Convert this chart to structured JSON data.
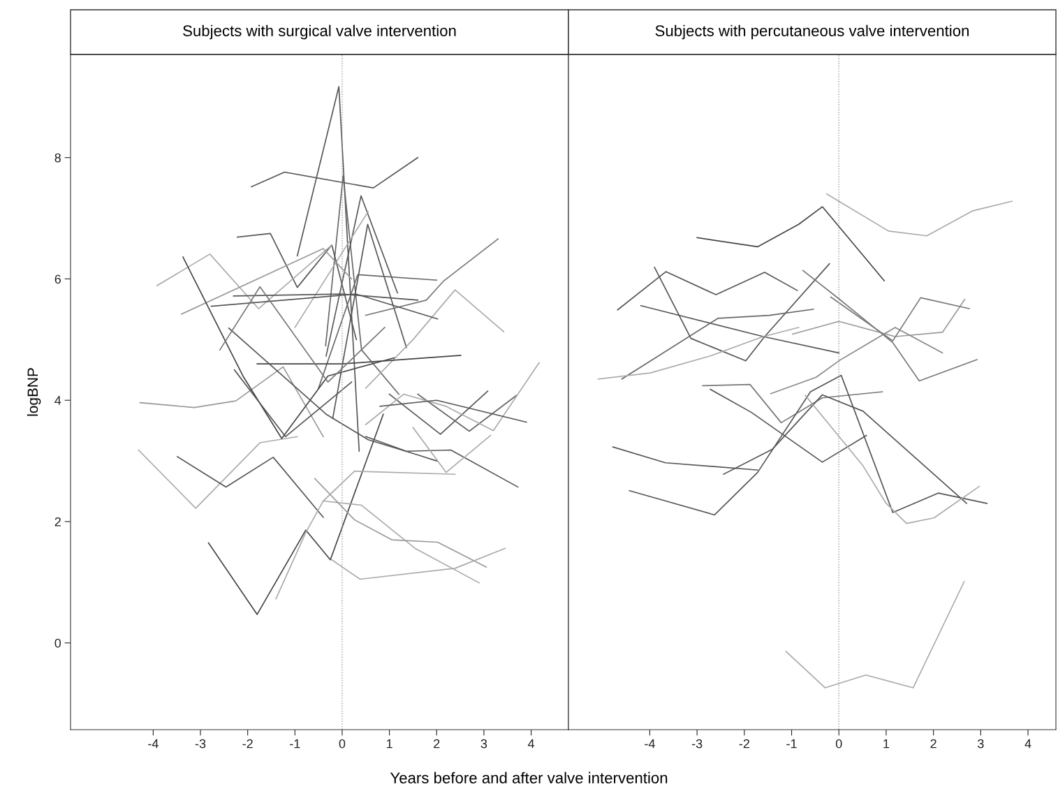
{
  "chart_data": [
    {
      "type": "line",
      "title": "Subjects with surgical valve intervention",
      "xlabel": "Years before and after valve intervention",
      "ylabel": "logBNP",
      "xlim": [
        -5.75,
        4.79
      ],
      "ylim": [
        -1.43,
        9.7
      ],
      "xticks": [
        -4,
        -3,
        -2,
        -1,
        0,
        1,
        2,
        3,
        4
      ],
      "yticks": [
        0,
        2,
        4,
        6,
        8
      ],
      "grid": false,
      "legend": false,
      "marker": "none",
      "line_style": "solid",
      "ref_lines": [
        {
          "axis": "x",
          "value": 0,
          "label": null,
          "color": "#999999",
          "line_style": "dotted"
        }
      ],
      "series": [
        {
          "color": "#555555",
          "x": [
            -1.92,
            -1.22,
            0.66,
            1.6
          ],
          "values": [
            7.52,
            7.76,
            7.5,
            8.0
          ]
        },
        {
          "color": "#555555",
          "x": [
            -0.95,
            -0.07,
            0.36
          ],
          "values": [
            6.38,
            9.17,
            3.16
          ]
        },
        {
          "color": "#666666",
          "x": [
            -0.35,
            0.02,
            0.41,
            1.2
          ],
          "values": [
            4.9,
            7.7,
            4.83,
            4.1
          ]
        },
        {
          "color": "#555555",
          "x": [
            -0.34,
            0.4,
            1.17
          ],
          "values": [
            4.73,
            7.37,
            5.77
          ]
        },
        {
          "color": "#555555",
          "x": [
            -0.2,
            0.54,
            1.36
          ],
          "values": [
            3.7,
            6.9,
            4.87
          ]
        },
        {
          "color": "#aaaaaa",
          "x": [
            -1.0,
            0.55
          ],
          "values": [
            5.2,
            7.11
          ]
        },
        {
          "color": "#555555",
          "x": [
            -2.22,
            -1.52,
            -0.95,
            -0.22,
            0.3
          ],
          "values": [
            6.69,
            6.75,
            5.86,
            6.56,
            5.0
          ]
        },
        {
          "color": "#aaaaaa",
          "x": [
            -3.92,
            -2.8,
            -1.77,
            -0.22
          ],
          "values": [
            5.89,
            6.41,
            5.51,
            6.56
          ]
        },
        {
          "color": "#999999",
          "x": [
            -3.4,
            -0.4,
            0.2
          ],
          "values": [
            5.42,
            6.5,
            6.0
          ]
        },
        {
          "color": "#777777",
          "x": [
            0.5,
            1.78,
            2.14,
            3.3
          ],
          "values": [
            5.4,
            5.65,
            5.96,
            6.66
          ]
        },
        {
          "color": "#aaaaaa",
          "x": [
            0.5,
            1.5,
            2.39,
            3.42
          ],
          "values": [
            4.2,
            5.0,
            5.82,
            5.13
          ]
        },
        {
          "color": "#666666",
          "x": [
            -0.5,
            0.33,
            2.0
          ],
          "values": [
            4.2,
            6.07,
            5.98
          ]
        },
        {
          "color": "#555555",
          "x": [
            -2.3,
            0,
            1.6
          ],
          "values": [
            5.72,
            5.75,
            5.65
          ]
        },
        {
          "color": "#555555",
          "x": [
            -2.77,
            0.3,
            2.02
          ],
          "values": [
            5.55,
            5.75,
            5.34
          ]
        },
        {
          "color": "#999999",
          "x": [
            -4.28,
            -3.13,
            -2.25,
            -1.25,
            -0.4
          ],
          "values": [
            3.96,
            3.88,
            3.99,
            4.55,
            3.4
          ]
        },
        {
          "color": "#aaaaaa",
          "x": [
            -4.31,
            -3.1,
            -1.74,
            -0.95
          ],
          "values": [
            3.18,
            2.22,
            3.3,
            3.4
          ]
        },
        {
          "color": "#555555",
          "x": [
            -3.49,
            -2.46,
            -1.46,
            -0.4
          ],
          "values": [
            3.07,
            2.57,
            3.06,
            2.07
          ]
        },
        {
          "color": "#444444",
          "x": [
            -2.83,
            -1.8,
            -0.77,
            -0.25,
            0.87
          ],
          "values": [
            1.65,
            0.47,
            1.86,
            1.37,
            3.77
          ]
        },
        {
          "color": "#aaaaaa",
          "x": [
            -1.4,
            -0.77,
            -0.4,
            0.41,
            1.54,
            2.9
          ],
          "values": [
            0.73,
            1.82,
            2.34,
            2.27,
            1.56,
            0.99
          ]
        },
        {
          "color": "#999999",
          "x": [
            -0.58,
            0.26,
            1.05,
            2.02,
            3.05
          ],
          "values": [
            2.71,
            2.03,
            1.7,
            1.66,
            1.25
          ]
        },
        {
          "color": "#aaaaaa",
          "x": [
            -0.22,
            0.38,
            2.39,
            3.45
          ],
          "values": [
            1.37,
            1.05,
            1.23,
            1.56
          ]
        },
        {
          "color": "#aaaaaa",
          "x": [
            -0.4,
            0.26,
            2.39
          ],
          "values": [
            2.34,
            2.83,
            2.78
          ]
        },
        {
          "color": "#555555",
          "x": [
            0.5,
            1.36,
            2.3,
            3.72
          ],
          "values": [
            3.4,
            3.16,
            3.18,
            2.57
          ]
        },
        {
          "color": "#aaaaaa",
          "x": [
            1.5,
            2.2,
            3.14
          ],
          "values": [
            3.55,
            2.81,
            3.42
          ]
        },
        {
          "color": "#555555",
          "x": [
            1.0,
            2.08,
            3.08
          ],
          "values": [
            4.1,
            3.44,
            4.15
          ]
        },
        {
          "color": "#666666",
          "x": [
            1.6,
            2.69,
            3.69
          ],
          "values": [
            4.1,
            3.49,
            4.08
          ]
        },
        {
          "color": "#aaaaaa",
          "x": [
            0.5,
            1.3,
            2.2,
            3.2,
            4.17
          ],
          "values": [
            3.6,
            4.1,
            3.9,
            3.5,
            4.62
          ]
        },
        {
          "color": "#555555",
          "x": [
            0.8,
            2.0,
            3.9
          ],
          "values": [
            3.9,
            4.0,
            3.64
          ]
        },
        {
          "color": "#444444",
          "x": [
            -1.8,
            0,
            2.51
          ],
          "values": [
            4.6,
            4.6,
            4.74
          ]
        },
        {
          "color": "#444444",
          "x": [
            -3.37,
            -2.1,
            -1.28,
            -0.3,
            1.1
          ],
          "values": [
            6.36,
            4.4,
            3.37,
            4.4,
            4.7
          ]
        },
        {
          "color": "#555555",
          "x": [
            -2.4,
            -0.34,
            0.55,
            1.6,
            2.0
          ],
          "values": [
            5.19,
            3.77,
            3.35,
            3.1,
            3.0
          ]
        },
        {
          "color": "#777777",
          "x": [
            -2.59,
            -1.74,
            -0.3,
            0.9
          ],
          "values": [
            4.83,
            5.87,
            4.3,
            5.2
          ]
        },
        {
          "color": "#555555",
          "x": [
            -2.28,
            -1.2,
            0.2
          ],
          "values": [
            4.5,
            3.4,
            4.3
          ]
        }
      ]
    },
    {
      "type": "line",
      "title": "Subjects with percutaneous valve intervention",
      "xlim": [
        -5.72,
        4.59
      ],
      "ylim": [
        -1.43,
        9.7
      ],
      "xticks": [
        -4,
        -3,
        -2,
        -1,
        0,
        1,
        2,
        3,
        4
      ],
      "tick_labels": "x",
      "grid": false,
      "legend": false,
      "marker": "none",
      "line_style": "solid",
      "ref_lines": [
        {
          "axis": "x",
          "value": 0,
          "label": null,
          "color": "#999999",
          "line_style": "dotted"
        }
      ],
      "series": [
        {
          "color": "#aaaaaa",
          "x": [
            -0.26,
            1.05,
            1.86,
            2.82,
            3.66
          ],
          "values": [
            7.4,
            6.79,
            6.71,
            7.12,
            7.28
          ]
        },
        {
          "color": "#444444",
          "x": [
            -3.0,
            -1.72,
            -0.85,
            -0.35,
            0.96
          ],
          "values": [
            6.68,
            6.53,
            6.9,
            7.19,
            5.97
          ]
        },
        {
          "color": "#555555",
          "x": [
            -4.68,
            -3.66,
            -2.6,
            -1.57,
            -0.88
          ],
          "values": [
            5.49,
            6.12,
            5.74,
            6.11,
            5.81
          ]
        },
        {
          "color": "#555555",
          "x": [
            -3.9,
            -3.13,
            -1.97,
            -1.57,
            -0.2
          ],
          "values": [
            6.19,
            5.02,
            4.65,
            5.05,
            6.25
          ]
        },
        {
          "color": "#555555",
          "x": [
            -4.19,
            -1.6,
            0
          ],
          "values": [
            5.56,
            5.05,
            4.78
          ]
        },
        {
          "color": "#666666",
          "x": [
            -4.59,
            -2.56,
            -1.47,
            -0.54
          ],
          "values": [
            4.35,
            5.35,
            5.4,
            5.5
          ]
        },
        {
          "color": "#aaaaaa",
          "x": [
            -5.09,
            -3.99,
            -2.72,
            -1.6,
            -0.85
          ],
          "values": [
            4.35,
            4.45,
            4.73,
            5.05,
            5.2
          ]
        },
        {
          "color": "#777777",
          "x": [
            -0.76,
            0.02,
            1.14,
            1.7,
            2.92
          ],
          "values": [
            6.14,
            5.66,
            4.95,
            4.32,
            4.67
          ]
        },
        {
          "color": "#999999",
          "x": [
            -0.98,
            0,
            1.19,
            2.19,
            2.66
          ],
          "values": [
            5.09,
            5.3,
            5.05,
            5.12,
            5.66
          ]
        },
        {
          "color": "#777777",
          "x": [
            -0.17,
            1.14,
            1.73,
            2.76
          ],
          "values": [
            5.7,
            4.98,
            5.69,
            5.51
          ]
        },
        {
          "color": "#777777",
          "x": [
            -2.88,
            -1.88,
            -1.22,
            -0.35,
            0.92
          ],
          "values": [
            4.24,
            4.26,
            3.63,
            4.04,
            4.14
          ]
        },
        {
          "color": "#555555",
          "x": [
            -2.72,
            -1.85,
            -0.35,
            0.58
          ],
          "values": [
            4.18,
            3.8,
            2.98,
            3.42
          ]
        },
        {
          "color": "#888888",
          "x": [
            -1.44,
            -0.48,
            0.02,
            1.19,
            2.19
          ],
          "values": [
            4.11,
            4.38,
            4.66,
            5.2,
            4.78
          ]
        },
        {
          "color": "#555555",
          "x": [
            -4.78,
            -3.67,
            -1.72
          ],
          "values": [
            3.23,
            2.97,
            2.85
          ]
        },
        {
          "color": "#555555",
          "x": [
            -4.43,
            -2.63,
            -1.72,
            -0.6,
            0.05,
            1.14,
            2.1,
            3.13
          ],
          "values": [
            2.51,
            2.11,
            2.81,
            4.14,
            4.41,
            2.15,
            2.47,
            2.3
          ]
        },
        {
          "color": "#555555",
          "x": [
            -2.44,
            -1.41,
            -0.35,
            0.51,
            2.7
          ],
          "values": [
            2.78,
            3.19,
            4.09,
            3.82,
            2.3
          ]
        },
        {
          "color": "#aaaaaa",
          "x": [
            -0.71,
            0.51,
            0.99,
            1.43,
            2.01,
            2.97
          ],
          "values": [
            4.08,
            2.92,
            2.31,
            1.97,
            2.06,
            2.58
          ]
        },
        {
          "color": "#aaaaaa",
          "x": [
            -1.12,
            -0.29,
            0.57,
            1.57,
            2.65
          ],
          "values": [
            -0.14,
            -0.74,
            -0.53,
            -0.74,
            1.01
          ]
        }
      ]
    }
  ]
}
